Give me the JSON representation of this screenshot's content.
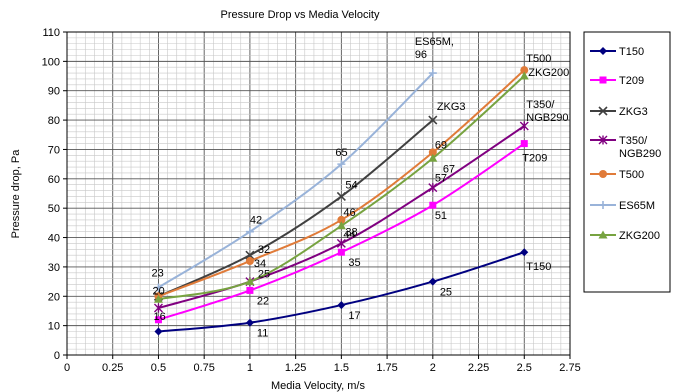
{
  "chart_data": {
    "type": "line",
    "title": "Pressure Drop  vs  Media Velocity",
    "xlabel": "Media Velocity, m/s",
    "ylabel": "Pressure drop, Pa",
    "xlim": [
      0,
      2.75
    ],
    "ylim": [
      0,
      110
    ],
    "x_ticks": [
      "0",
      "0.25",
      "0.5",
      "0.75",
      "1",
      "1.25",
      "1.5",
      "1.75",
      "2",
      "2.25",
      "2.5",
      "2.75"
    ],
    "y_ticks": [
      "0",
      "10",
      "20",
      "30",
      "40",
      "50",
      "60",
      "70",
      "80",
      "90",
      "100",
      "110"
    ],
    "grid": true,
    "legend_position": "right",
    "series": [
      {
        "name": "T150",
        "color": "#000080",
        "marker": "diamond",
        "x": [
          0.5,
          1,
          1.5,
          2,
          2.5
        ],
        "y": [
          8,
          11,
          17,
          25,
          35
        ],
        "labels": [
          "",
          "11",
          "17",
          "25",
          "T150"
        ]
      },
      {
        "name": "T209",
        "color": "#FF00FF",
        "marker": "square",
        "x": [
          0.5,
          1,
          1.5,
          2,
          2.5
        ],
        "y": [
          12,
          22,
          35,
          51,
          72
        ],
        "labels": [
          "",
          "22",
          "35",
          "51",
          "T209"
        ]
      },
      {
        "name": "ZKG3",
        "color": "#404040",
        "marker": "x",
        "x": [
          0.5,
          1,
          1.5,
          2
        ],
        "y": [
          20,
          34,
          54,
          80
        ],
        "labels": [
          "20",
          "34",
          "54",
          "ZKG3"
        ]
      },
      {
        "name": "T350/ NGB290",
        "color": "#800080",
        "marker": "star",
        "x": [
          0.5,
          1,
          1.5,
          2,
          2.5
        ],
        "y": [
          16,
          25,
          38,
          57,
          78
        ],
        "labels": [
          "16",
          "",
          "38",
          "57",
          "T350/ NGB290"
        ]
      },
      {
        "name": "T500",
        "color": "#E07B39",
        "marker": "circle",
        "x": [
          0.5,
          1,
          1.5,
          2,
          2.5
        ],
        "y": [
          20,
          32,
          46,
          69,
          97
        ],
        "labels": [
          "",
          "32",
          "46",
          "69",
          "T500"
        ]
      },
      {
        "name": "ES65M",
        "color": "#99B3D9",
        "marker": "plus",
        "x": [
          0.5,
          1,
          1.5,
          2
        ],
        "y": [
          23,
          42,
          65,
          96
        ],
        "labels": [
          "23",
          "42",
          "65",
          "ES65M, 96"
        ]
      },
      {
        "name": "ZKG200",
        "color": "#77A340",
        "marker": "triangle",
        "x": [
          0.5,
          1,
          1.5,
          2,
          2.5
        ],
        "y": [
          19,
          25,
          44,
          67,
          95
        ],
        "labels": [
          "",
          "25",
          "44",
          "67",
          "ZKG200"
        ]
      }
    ]
  }
}
